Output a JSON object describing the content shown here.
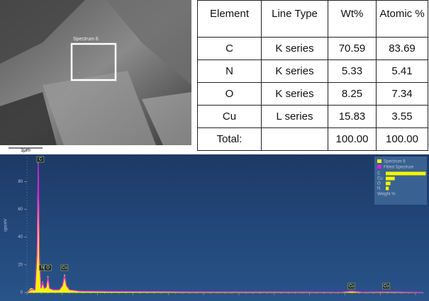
{
  "sem": {
    "region_label": "Spectrum 6",
    "scale_label": "1μm"
  },
  "table": {
    "header": [
      "Element",
      "Line Type",
      "Wt%",
      "Atomic %"
    ],
    "rows": [
      [
        "C",
        "K series",
        "70.59",
        "83.69"
      ],
      [
        "N",
        "K series",
        "5.33",
        "5.41"
      ],
      [
        "O",
        "K series",
        "8.25",
        "7.34"
      ],
      [
        "Cu",
        "L series",
        "15.83",
        "3.55"
      ],
      [
        "Total:",
        "",
        "100.00",
        "100.00"
      ]
    ]
  },
  "chart_data": {
    "type": "line",
    "y_label": "cps/eV",
    "x": [
      0,
      0.1,
      0.2,
      0.25,
      0.28,
      0.31,
      0.35,
      0.39,
      0.43,
      0.48,
      0.52,
      0.56,
      0.65,
      0.8,
      0.88,
      0.93,
      0.98,
      1.05,
      1.3,
      2,
      4,
      6,
      7.8,
      8.04,
      8.3,
      8.9,
      9.8
    ],
    "series": [
      {
        "name": "Spectrum 6",
        "color": "#f5f500",
        "values": [
          0,
          3,
          2,
          30,
          94,
          25,
          3,
          8,
          3,
          4,
          12,
          3,
          2,
          2,
          5,
          13,
          5,
          2,
          1,
          0.8,
          0.5,
          0.4,
          0.3,
          1,
          0.3,
          0.5,
          0.2
        ]
      },
      {
        "name": "Fitted Spectrum",
        "color": "#e020e0",
        "values": [
          0,
          2,
          2,
          28,
          93,
          24,
          3,
          7,
          3,
          4,
          11,
          3,
          2,
          2,
          5,
          12,
          5,
          2,
          1,
          0.8,
          0.5,
          0.4,
          0.3,
          1,
          0.3,
          0.5,
          0.2
        ]
      }
    ],
    "annotations": [
      {
        "text": "C",
        "x": 0.28
      },
      {
        "text": "N",
        "x": 0.39
      },
      {
        "text": "O",
        "x": 0.52
      },
      {
        "text": "Cu",
        "x": 0.93
      },
      {
        "text": "Cu",
        "x": 8.04
      },
      {
        "text": "Cu",
        "x": 8.9
      }
    ],
    "weight_label": "Weight %",
    "xlim": [
      0,
      9.8
    ],
    "ylim": [
      0,
      97
    ],
    "yticks": [
      0,
      20,
      40,
      60,
      80
    ]
  }
}
